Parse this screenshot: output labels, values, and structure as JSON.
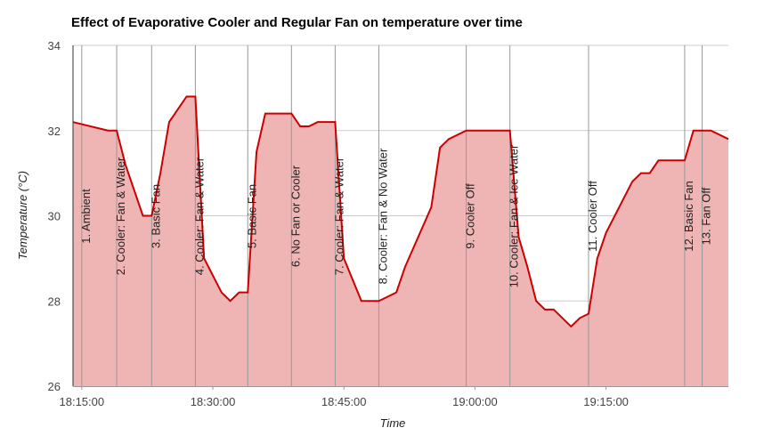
{
  "chart_data": {
    "type": "area",
    "title": "Effect of Evaporative Cooler and Regular Fan on temperature over time",
    "x_label": "Time",
    "y_label": "Temperature (°C)",
    "x": [
      "18:14:00",
      "18:18:00",
      "18:19:00",
      "18:20:00",
      "18:22:00",
      "18:23:00",
      "18:24:00",
      "18:25:00",
      "18:26:00",
      "18:27:00",
      "18:28:00",
      "18:29:00",
      "18:30:00",
      "18:31:00",
      "18:32:00",
      "18:33:00",
      "18:34:00",
      "18:35:00",
      "18:36:00",
      "18:39:00",
      "18:40:00",
      "18:41:00",
      "18:42:00",
      "18:44:00",
      "18:45:00",
      "18:47:00",
      "18:49:00",
      "18:50:00",
      "18:51:00",
      "18:52:00",
      "18:55:00",
      "18:56:00",
      "18:57:00",
      "18:59:00",
      "19:04:00",
      "19:05:00",
      "19:06:00",
      "19:07:00",
      "19:08:00",
      "19:09:00",
      "19:11:00",
      "19:12:00",
      "19:13:00",
      "19:14:00",
      "19:15:00",
      "19:18:00",
      "19:19:00",
      "19:20:00",
      "19:21:00",
      "19:24:00",
      "19:25:00",
      "19:27:00",
      "19:29:00"
    ],
    "values": [
      32.2,
      32.0,
      32.0,
      31.2,
      30.0,
      30.0,
      31.0,
      32.2,
      32.5,
      32.8,
      32.8,
      29.0,
      28.6,
      28.2,
      28.0,
      28.2,
      28.2,
      31.5,
      32.4,
      32.4,
      32.1,
      32.1,
      32.2,
      32.2,
      29.0,
      28.0,
      28.0,
      28.1,
      28.2,
      28.8,
      30.2,
      31.6,
      31.8,
      32.0,
      32.0,
      29.5,
      28.8,
      28.0,
      27.8,
      27.8,
      27.4,
      27.6,
      27.7,
      29.0,
      29.6,
      30.8,
      31.0,
      31.0,
      31.3,
      31.3,
      32.0,
      32.0,
      31.8
    ],
    "color": "#cc0000",
    "fill": "#efb4b4",
    "xlim": [
      "18:14:00",
      "19:29:00"
    ],
    "xticks": [
      "18:15:00",
      "18:30:00",
      "18:45:00",
      "19:00:00",
      "19:15:00"
    ],
    "ylim": [
      26,
      34
    ],
    "yticks": [
      26,
      28,
      30,
      32,
      34
    ],
    "grid": true,
    "annotations": [
      {
        "x": "18:15:00",
        "text": "1. Ambient"
      },
      {
        "x": "18:19:00",
        "text": "2. Cooler: Fan & Water"
      },
      {
        "x": "18:23:00",
        "text": "3. Basic Fan"
      },
      {
        "x": "18:28:00",
        "text": "4. Cooler: Fan & Water"
      },
      {
        "x": "18:34:00",
        "text": "5. Basic Fan"
      },
      {
        "x": "18:39:00",
        "text": "6. No Fan or Cooler"
      },
      {
        "x": "18:44:00",
        "text": "7. Cooler: Fan & Water"
      },
      {
        "x": "18:49:00",
        "text": "8. Cooler: Fan & No Water"
      },
      {
        "x": "18:59:00",
        "text": "9. Cooler Off"
      },
      {
        "x": "19:04:00",
        "text": "10. Cooler: Fan & Ice Water"
      },
      {
        "x": "19:13:00",
        "text": "11. Cooler Off"
      },
      {
        "x": "19:24:00",
        "text": "12. Basic Fan"
      },
      {
        "x": "19:26:00",
        "text": "13. Fan Off"
      }
    ]
  }
}
